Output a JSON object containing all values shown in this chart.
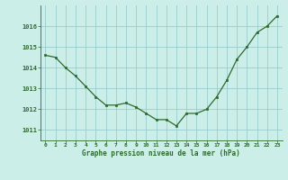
{
  "hours": [
    0,
    1,
    2,
    3,
    4,
    5,
    6,
    7,
    8,
    9,
    10,
    11,
    12,
    13,
    14,
    15,
    16,
    17,
    18,
    19,
    20,
    21,
    22,
    23
  ],
  "pressure": [
    1014.6,
    1014.5,
    1014.0,
    1013.6,
    1013.1,
    1012.6,
    1012.2,
    1012.2,
    1012.3,
    1012.1,
    1011.8,
    1011.5,
    1011.5,
    1011.2,
    1011.8,
    1011.8,
    1012.0,
    1012.6,
    1013.4,
    1014.4,
    1015.0,
    1015.7,
    1016.0,
    1016.5
  ],
  "line_color": "#2d6a2d",
  "marker_color": "#2d6a2d",
  "bg_color": "#cceee8",
  "grid_color": "#99cccc",
  "tick_color": "#2d6a2d",
  "label_color": "#2d6a2d",
  "xlabel": "Graphe pression niveau de la mer (hPa)",
  "ylim": [
    1010.5,
    1017.0
  ],
  "yticks": [
    1011,
    1012,
    1013,
    1014,
    1015,
    1016
  ]
}
